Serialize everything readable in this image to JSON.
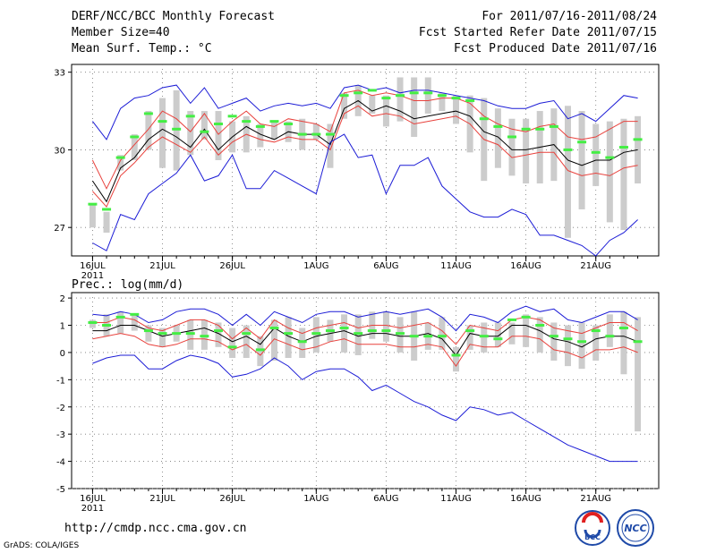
{
  "header": {
    "title": "DERF/NCC/BCC Monthly Forecast",
    "member_size": "Member Size=40",
    "variable": "Mean Surf. Temp.: °C",
    "forecast_period": "For 2011/07/16-2011/08/24",
    "started_date": "Fcst Started Refer Date 2011/07/15",
    "produced_date": "Fcst Produced Date 2011/07/16"
  },
  "footer": {
    "url": "http://cmdp.ncc.cma.gov.cn",
    "credit": "GrADS: COLA/IGES",
    "logo_bcc": "BCC",
    "logo_ncc": "NCC"
  },
  "colors": {
    "ensemble_mean": "#000000",
    "spread_band": "#e8413c",
    "extremes": "#1c1cd6",
    "median": "#44ee44",
    "boxes": "#cccccc"
  },
  "chart_data": [
    {
      "type": "line",
      "title": "Mean Surf. Temp.: °C",
      "x": [
        16,
        17,
        18,
        19,
        20,
        21,
        22,
        23,
        24,
        25,
        26,
        27,
        28,
        29,
        30,
        31,
        32,
        33,
        34,
        35,
        36,
        37,
        38,
        39,
        40,
        41,
        42,
        43,
        44,
        45,
        46,
        47,
        48,
        49,
        50,
        51,
        52,
        53,
        54,
        55
      ],
      "x_tick_labels": [
        "16JUL",
        "21JUL",
        "26JUL",
        "1AUG",
        "6AUG",
        "11AUG",
        "16AUG",
        "21AUG"
      ],
      "x_tick_year": "2011",
      "ylim": [
        25.9,
        33.3
      ],
      "yticks": [
        27,
        30,
        33
      ],
      "series": [
        {
          "name": "max",
          "values": [
            31.1,
            30.4,
            31.6,
            32.0,
            32.1,
            32.4,
            32.5,
            31.8,
            32.4,
            31.6,
            31.8,
            32.0,
            31.5,
            31.7,
            31.8,
            31.7,
            31.8,
            31.6,
            32.4,
            32.5,
            32.3,
            32.4,
            32.2,
            32.3,
            32.3,
            32.2,
            32.1,
            32.0,
            31.9,
            31.7,
            31.6,
            31.6,
            31.8,
            31.9,
            31.2,
            31.4,
            31.1,
            31.6,
            32.1,
            32.0
          ]
        },
        {
          "name": "upper",
          "values": [
            29.6,
            28.5,
            29.6,
            30.2,
            30.8,
            31.5,
            31.2,
            30.7,
            31.4,
            30.6,
            31.1,
            31.5,
            31.0,
            30.9,
            31.2,
            31.1,
            31.0,
            30.7,
            32.2,
            32.3,
            32.1,
            32.2,
            32.1,
            31.9,
            31.9,
            32.0,
            32.0,
            31.8,
            31.3,
            31.0,
            30.8,
            30.7,
            30.9,
            31.0,
            30.5,
            30.4,
            30.5,
            30.8,
            31.1,
            31.1
          ]
        },
        {
          "name": "mean",
          "values": [
            28.8,
            28.0,
            29.3,
            29.7,
            30.4,
            30.8,
            30.5,
            30.1,
            30.8,
            30.0,
            30.5,
            30.9,
            30.6,
            30.4,
            30.7,
            30.6,
            30.6,
            30.2,
            31.6,
            31.9,
            31.5,
            31.7,
            31.5,
            31.2,
            31.3,
            31.4,
            31.5,
            31.3,
            30.7,
            30.5,
            30.0,
            30.0,
            30.1,
            30.2,
            29.6,
            29.4,
            29.6,
            29.6,
            29.9,
            30.0
          ]
        },
        {
          "name": "lower",
          "values": [
            28.4,
            27.8,
            29.0,
            29.5,
            30.1,
            30.5,
            30.2,
            29.9,
            30.5,
            29.8,
            30.3,
            30.6,
            30.4,
            30.3,
            30.5,
            30.4,
            30.4,
            30.0,
            31.4,
            31.7,
            31.3,
            31.4,
            31.3,
            31.0,
            31.1,
            31.2,
            31.3,
            31.0,
            30.4,
            30.2,
            29.7,
            29.8,
            29.9,
            29.9,
            29.2,
            29.0,
            29.1,
            29.0,
            29.3,
            29.4
          ]
        },
        {
          "name": "min",
          "values": [
            26.4,
            26.1,
            27.5,
            27.3,
            28.3,
            28.7,
            29.1,
            29.8,
            28.8,
            29.0,
            29.8,
            28.5,
            28.5,
            29.2,
            28.9,
            28.6,
            28.3,
            30.3,
            30.6,
            29.7,
            29.8,
            28.3,
            29.4,
            29.4,
            29.7,
            28.6,
            28.1,
            27.6,
            27.4,
            27.4,
            27.7,
            27.5,
            26.7,
            26.7,
            26.5,
            26.3,
            25.9,
            26.5,
            26.8,
            27.3
          ]
        },
        {
          "name": "median",
          "values": [
            27.9,
            27.7,
            29.7,
            30.5,
            31.4,
            31.1,
            30.8,
            31.3,
            30.7,
            31.0,
            31.3,
            31.1,
            30.9,
            31.1,
            31.0,
            30.6,
            30.6,
            30.6,
            32.1,
            32.2,
            32.3,
            32.0,
            32.1,
            32.2,
            32.2,
            32.1,
            32.0,
            31.9,
            31.2,
            30.9,
            30.5,
            30.8,
            30.8,
            30.9,
            30.0,
            30.3,
            29.9,
            29.7,
            30.1,
            30.4
          ]
        }
      ],
      "box_ranges": [
        [
          27.0,
          27.9
        ],
        [
          26.8,
          27.6
        ],
        [
          29.2,
          29.8
        ],
        [
          29.6,
          30.6
        ],
        [
          30.0,
          31.5
        ],
        [
          29.3,
          32.0
        ],
        [
          29.2,
          32.3
        ],
        [
          29.8,
          31.5
        ],
        [
          30.4,
          31.5
        ],
        [
          29.6,
          31.5
        ],
        [
          29.9,
          31.1
        ],
        [
          29.9,
          31.3
        ],
        [
          30.1,
          31.0
        ],
        [
          30.4,
          31.1
        ],
        [
          30.3,
          31.1
        ],
        [
          30.0,
          31.2
        ],
        [
          30.4,
          31.0
        ],
        [
          29.3,
          31.0
        ],
        [
          31.2,
          32.2
        ],
        [
          31.3,
          32.5
        ],
        [
          31.4,
          32.1
        ],
        [
          30.9,
          32.1
        ],
        [
          31.1,
          32.8
        ],
        [
          30.5,
          32.8
        ],
        [
          31.4,
          32.8
        ],
        [
          31.5,
          32.2
        ],
        [
          31.0,
          32.1
        ],
        [
          29.9,
          32.1
        ],
        [
          28.8,
          32.0
        ],
        [
          29.3,
          31.6
        ],
        [
          29.0,
          31.2
        ],
        [
          28.7,
          31.2
        ],
        [
          28.7,
          31.5
        ],
        [
          28.8,
          31.6
        ],
        [
          26.6,
          31.7
        ],
        [
          27.7,
          31.5
        ],
        [
          28.6,
          31.0
        ],
        [
          27.2,
          31.1
        ],
        [
          26.9,
          31.2
        ],
        [
          28.7,
          31.3
        ]
      ]
    },
    {
      "type": "line",
      "title": "Prec.: log(mm/d)",
      "x": [
        16,
        17,
        18,
        19,
        20,
        21,
        22,
        23,
        24,
        25,
        26,
        27,
        28,
        29,
        30,
        31,
        32,
        33,
        34,
        35,
        36,
        37,
        38,
        39,
        40,
        41,
        42,
        43,
        44,
        45,
        46,
        47,
        48,
        49,
        50,
        51,
        52,
        53,
        54,
        55
      ],
      "x_tick_labels": [
        "16JUL",
        "21JUL",
        "26JUL",
        "1AUG",
        "6AUG",
        "11AUG",
        "16AUG",
        "21AUG"
      ],
      "x_tick_year": "2011",
      "ylim": [
        -5,
        2.2
      ],
      "yticks": [
        -5,
        -4,
        -3,
        -2,
        -1,
        0,
        1,
        2
      ],
      "series": [
        {
          "name": "max",
          "values": [
            1.4,
            1.35,
            1.5,
            1.4,
            1.1,
            1.2,
            1.5,
            1.6,
            1.6,
            1.4,
            1.0,
            1.4,
            1.0,
            1.5,
            1.3,
            1.1,
            1.4,
            1.5,
            1.5,
            1.3,
            1.4,
            1.5,
            1.4,
            1.5,
            1.6,
            1.3,
            0.8,
            1.4,
            1.3,
            1.1,
            1.5,
            1.7,
            1.5,
            1.6,
            1.2,
            1.1,
            1.3,
            1.5,
            1.5,
            1.2
          ]
        },
        {
          "name": "upper",
          "values": [
            1.1,
            1.1,
            1.3,
            1.2,
            0.9,
            0.8,
            1.0,
            1.2,
            1.2,
            1.0,
            0.5,
            0.9,
            0.5,
            1.2,
            0.9,
            0.7,
            0.9,
            1.0,
            1.1,
            0.9,
            1.0,
            1.0,
            0.9,
            1.0,
            1.1,
            0.8,
            0.3,
            1.0,
            0.9,
            0.8,
            1.2,
            1.3,
            1.2,
            0.9,
            0.8,
            0.7,
            0.9,
            1.1,
            1.1,
            0.8
          ]
        },
        {
          "name": "mean",
          "values": [
            0.8,
            0.8,
            1.0,
            1.0,
            0.8,
            0.6,
            0.7,
            0.8,
            0.9,
            0.7,
            0.4,
            0.6,
            0.3,
            0.9,
            0.6,
            0.4,
            0.6,
            0.7,
            0.8,
            0.6,
            0.7,
            0.7,
            0.6,
            0.6,
            0.7,
            0.5,
            -0.1,
            0.7,
            0.6,
            0.6,
            1.0,
            1.0,
            0.8,
            0.5,
            0.4,
            0.2,
            0.5,
            0.6,
            0.6,
            0.4
          ]
        },
        {
          "name": "lower",
          "values": [
            0.5,
            0.6,
            0.7,
            0.6,
            0.3,
            0.2,
            0.3,
            0.5,
            0.5,
            0.4,
            0.1,
            0.3,
            -0.1,
            0.5,
            0.3,
            0.1,
            0.2,
            0.4,
            0.5,
            0.3,
            0.3,
            0.3,
            0.2,
            0.2,
            0.3,
            0.2,
            -0.5,
            0.3,
            0.2,
            0.2,
            0.6,
            0.6,
            0.5,
            0.1,
            0.0,
            -0.2,
            0.1,
            0.1,
            0.2,
            0.0
          ]
        },
        {
          "name": "min",
          "values": [
            -0.4,
            -0.2,
            -0.1,
            -0.1,
            -0.6,
            -0.6,
            -0.3,
            -0.1,
            -0.2,
            -0.4,
            -0.9,
            -0.8,
            -0.6,
            -0.2,
            -0.5,
            -1.0,
            -0.7,
            -0.6,
            -0.6,
            -0.9,
            -1.4,
            -1.2,
            -1.5,
            -1.8,
            -2.0,
            -2.3,
            -2.5,
            -2.0,
            -2.1,
            -2.3,
            -2.2,
            -2.5,
            -2.8,
            -3.1,
            -3.4,
            -3.6,
            -3.8,
            -4.0,
            -4.0,
            -4.0
          ]
        },
        {
          "name": "median",
          "values": [
            1.1,
            1.0,
            1.3,
            1.4,
            0.8,
            0.7,
            0.7,
            0.7,
            0.6,
            0.8,
            0.2,
            0.7,
            0.1,
            0.9,
            0.7,
            0.4,
            0.7,
            0.8,
            0.9,
            0.7,
            0.8,
            0.8,
            0.7,
            0.6,
            0.6,
            0.6,
            -0.1,
            0.8,
            0.6,
            0.5,
            1.2,
            1.3,
            1.0,
            0.6,
            0.5,
            0.4,
            0.8,
            0.6,
            0.9,
            0.4
          ]
        }
      ],
      "box_ranges": [
        [
          0.9,
          1.2
        ],
        [
          0.6,
          1.4
        ],
        [
          0.7,
          1.5
        ],
        [
          0.8,
          1.4
        ],
        [
          0.4,
          1.0
        ],
        [
          0.2,
          0.9
        ],
        [
          0.4,
          1.0
        ],
        [
          0.1,
          1.2
        ],
        [
          0.1,
          1.2
        ],
        [
          0.2,
          1.1
        ],
        [
          -0.2,
          0.9
        ],
        [
          -0.2,
          1.0
        ],
        [
          -0.5,
          0.6
        ],
        [
          -0.3,
          1.2
        ],
        [
          -0.2,
          1.3
        ],
        [
          -0.2,
          0.9
        ],
        [
          0.0,
          1.3
        ],
        [
          0.4,
          1.2
        ],
        [
          0.0,
          1.4
        ],
        [
          -0.1,
          1.4
        ],
        [
          0.5,
          1.5
        ],
        [
          0.4,
          1.5
        ],
        [
          0.0,
          1.3
        ],
        [
          -0.3,
          1.5
        ],
        [
          0.1,
          1.1
        ],
        [
          0.1,
          1.3
        ],
        [
          -0.7,
          0.2
        ],
        [
          0.1,
          1.0
        ],
        [
          0.0,
          1.1
        ],
        [
          0.2,
          1.1
        ],
        [
          0.3,
          1.1
        ],
        [
          0.2,
          1.4
        ],
        [
          0.0,
          1.3
        ],
        [
          -0.3,
          1.1
        ],
        [
          -0.5,
          1.0
        ],
        [
          -0.6,
          1.1
        ],
        [
          -0.3,
          1.0
        ],
        [
          0.2,
          1.4
        ],
        [
          -0.8,
          1.5
        ],
        [
          -2.9,
          1.3
        ]
      ]
    }
  ]
}
